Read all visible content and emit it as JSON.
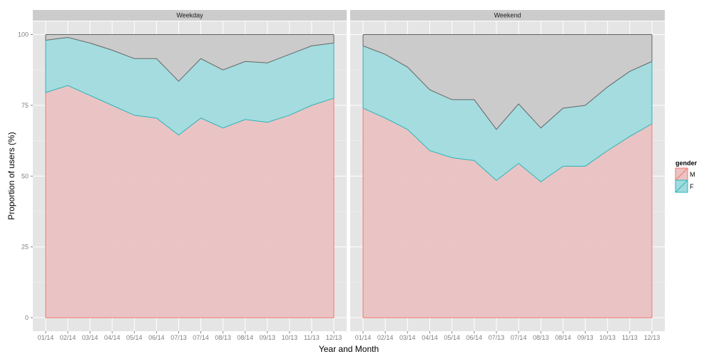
{
  "chart_data": {
    "type": "area",
    "stacked": true,
    "xlabel": "Year and Month",
    "ylabel": "Proportion of users (%)",
    "ylim": [
      0,
      100
    ],
    "yticks": [
      0,
      25,
      50,
      75,
      100
    ],
    "grid": true,
    "legend_position": "right",
    "legend_title": "gender",
    "categories": [
      "01/14",
      "02/14",
      "03/14",
      "04/14",
      "05/14",
      "06/14",
      "07/13",
      "07/14",
      "08/13",
      "08/14",
      "09/13",
      "10/13",
      "11/13",
      "12/13"
    ],
    "panels": [
      {
        "name": "Weekday",
        "male": [
          79.5,
          82.0,
          78.5,
          75.0,
          71.5,
          70.5,
          64.5,
          70.5,
          67.0,
          70.0,
          69.0,
          71.5,
          75.0,
          77.5
        ],
        "male_plus_female": [
          98.0,
          99.0,
          97.0,
          94.5,
          91.5,
          91.5,
          83.5,
          91.5,
          87.5,
          90.5,
          90.0,
          93.0,
          96.0,
          97.0
        ],
        "total": 100
      },
      {
        "name": "Weekend",
        "male": [
          74.0,
          70.5,
          66.5,
          59.0,
          56.5,
          55.5,
          48.5,
          54.5,
          48.0,
          53.5,
          53.5,
          59.0,
          64.0,
          68.5
        ],
        "male_plus_female": [
          96.0,
          93.0,
          88.5,
          80.5,
          77.0,
          77.0,
          66.5,
          75.5,
          67.0,
          74.0,
          75.0,
          81.5,
          87.0,
          90.5
        ],
        "total": 100
      }
    ],
    "legend": [
      {
        "key": "M",
        "label": "M",
        "fill": "#f8766d"
      },
      {
        "key": "F",
        "label": "F",
        "fill": "#00bfc4"
      }
    ]
  },
  "colors": {
    "panel_bg": "#e5e5e5",
    "strip_bg": "#cccccc",
    "gridline": "#ffffff",
    "male_fill": "#eac2c2",
    "male_line": "#f8766d",
    "female_fill": "#a0dbde",
    "female_line": "#2bb5b9",
    "rest_fill": "#c9c9c9",
    "rest_line": "#666666"
  }
}
